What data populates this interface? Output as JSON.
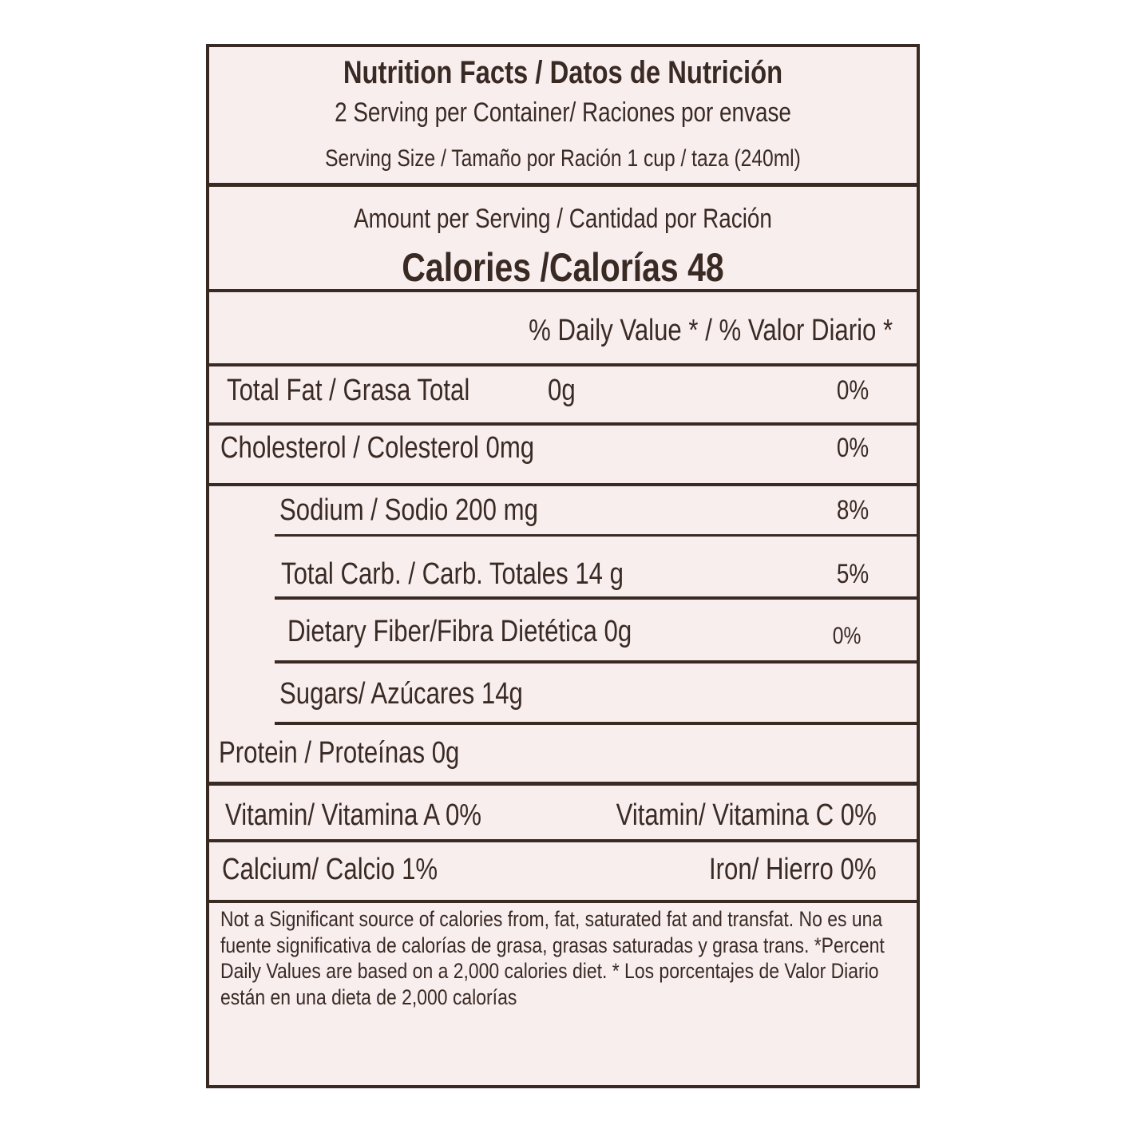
{
  "header": {
    "title": "Nutrition Facts / Datos de Nutrición",
    "servings": "2 Serving per Container/ Raciones por envase",
    "serving_size": "Serving Size / Tamaño por Ración 1 cup / taza (240ml)"
  },
  "amount": {
    "label": "Amount per Serving / Cantidad por Ración",
    "calories": "Calories /Calorías 48"
  },
  "daily_value_header": "% Daily Value * / % Valor Diario *",
  "rows": [
    {
      "label": "Total Fat / Grasa Total",
      "amount": "0g",
      "dv": "0%"
    },
    {
      "label": "Cholesterol / Colesterol 0mg",
      "dv": "0%"
    },
    {
      "label": "Sodium / Sodio 200 mg",
      "dv": "8%"
    },
    {
      "label": "Total Carb. / Carb. Totales 14 g",
      "dv": "5%"
    },
    {
      "label": "Dietary Fiber/Fibra Dietética 0g",
      "dv": "0%"
    },
    {
      "label": "Sugars/ Azúcares 14g"
    },
    {
      "label": "Protein / Proteínas 0g"
    }
  ],
  "vitamins": [
    [
      "Vitamin/ Vitamina A 0%",
      "Vitamin/ Vitamina C 0%"
    ],
    [
      "Calcium/ Calcio 1%",
      "Iron/ Hierro 0%"
    ]
  ],
  "footnote": "Not a Significant source of calories from, fat, saturated fat and transfat. No es una fuente significativa de calorías de grasa, grasas saturadas y grasa trans. *Percent Daily Values are based on a 2,000 calories diet. * Los porcentajes de Valor Diario están en una dieta de 2,000 calorías"
}
